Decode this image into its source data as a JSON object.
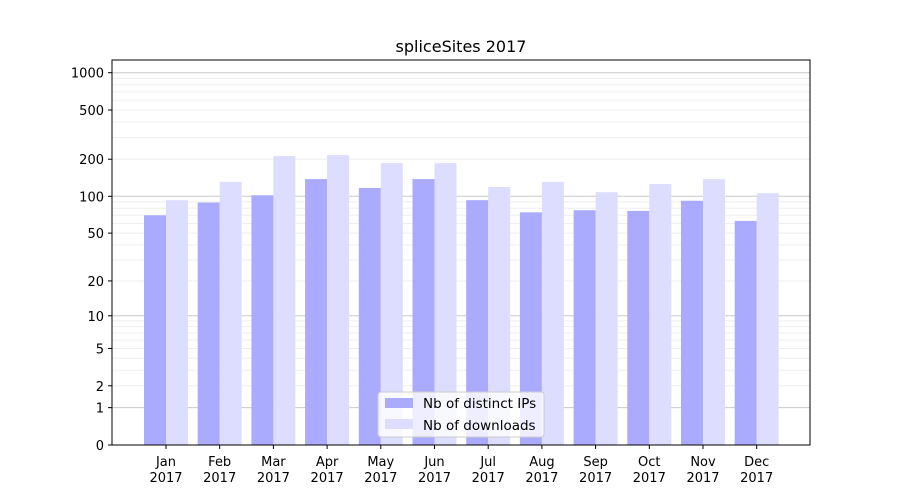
{
  "chart_data": {
    "type": "bar",
    "title": "spliceSites 2017",
    "xlabel": "",
    "ylabel": "",
    "yscale": "log(1+x)",
    "ylim": [
      0,
      1300
    ],
    "yticks": [
      0,
      1,
      2,
      5,
      10,
      20,
      50,
      100,
      200,
      500,
      1000
    ],
    "ytick_labels": [
      "0",
      "1",
      "2",
      "5",
      "10",
      "20",
      "50",
      "100",
      "200",
      "500",
      "1000"
    ],
    "grid": true,
    "legend_position": "bottom-center",
    "categories": [
      [
        "Jan",
        "2017"
      ],
      [
        "Feb",
        "2017"
      ],
      [
        "Mar",
        "2017"
      ],
      [
        "Apr",
        "2017"
      ],
      [
        "May",
        "2017"
      ],
      [
        "Jun",
        "2017"
      ],
      [
        "Jul",
        "2017"
      ],
      [
        "Aug",
        "2017"
      ],
      [
        "Sep",
        "2017"
      ],
      [
        "Oct",
        "2017"
      ],
      [
        "Nov",
        "2017"
      ],
      [
        "Dec",
        "2017"
      ]
    ],
    "series": [
      {
        "name": "Nb of distinct IPs",
        "color": "#aaaaff",
        "values": [
          70,
          89,
          102,
          138,
          117,
          138,
          93,
          74,
          77,
          76,
          92,
          63
        ]
      },
      {
        "name": "Nb of downloads",
        "color": "#ddddff",
        "values": [
          93,
          131,
          212,
          216,
          186,
          186,
          119,
          131,
          108,
          126,
          138,
          106
        ]
      }
    ]
  }
}
